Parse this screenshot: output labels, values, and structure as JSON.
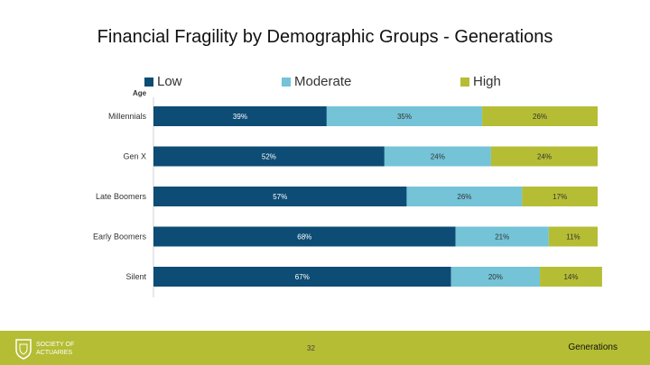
{
  "title": "Financial Fragility by Demographic Groups - Generations",
  "footer": {
    "logo_text": "SOCIETY OF\nACTUARIES",
    "page_number": "32",
    "section": "Generations"
  },
  "colors": {
    "low": "#0d4c74",
    "moderate": "#74c3d7",
    "high": "#b5bd34"
  },
  "chart_data": {
    "type": "bar",
    "orientation": "horizontal",
    "stacked": true,
    "ylabel": "Age",
    "categories": [
      "Millennials",
      "Gen X",
      "Late Boomers",
      "Early Boomers",
      "Silent"
    ],
    "series": [
      {
        "name": "Low",
        "values": [
          39,
          52,
          57,
          68,
          67
        ],
        "labels": [
          "39%",
          "52%",
          "57%",
          "68%",
          "67%"
        ]
      },
      {
        "name": "Moderate",
        "values": [
          35,
          24,
          26,
          21,
          20
        ],
        "labels": [
          "35%",
          "24%",
          "26%",
          "21%",
          "20%"
        ]
      },
      {
        "name": "High",
        "values": [
          26,
          24,
          17,
          11,
          14
        ],
        "labels": [
          "26%",
          "24%",
          "17%",
          "11%",
          "14%"
        ]
      }
    ],
    "xlim": [
      0,
      100
    ],
    "legend_position": "top",
    "grid": false
  }
}
